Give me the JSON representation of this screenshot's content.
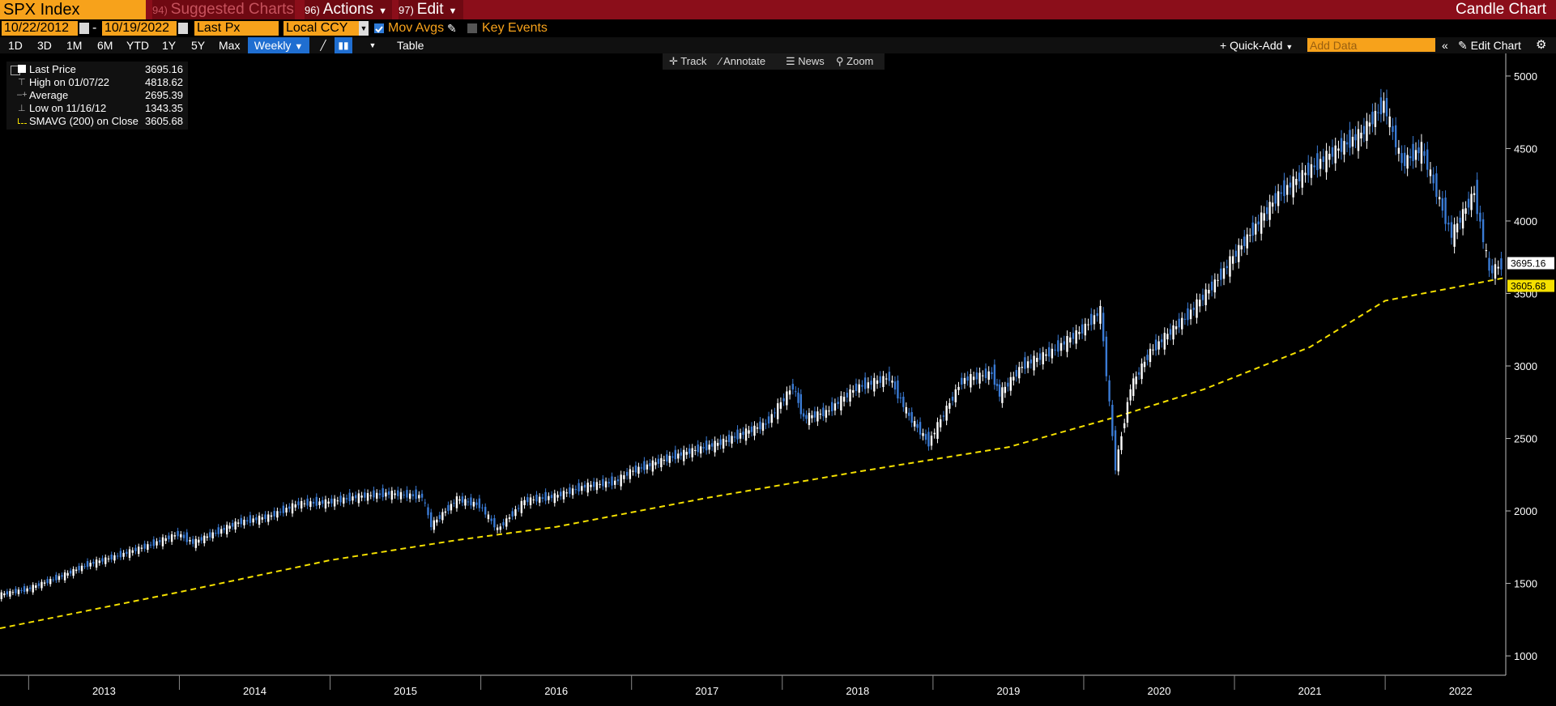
{
  "header": {
    "ticker": "SPX Index",
    "suggested_num": "94)",
    "suggested": "Suggested Charts",
    "actions_num": "96)",
    "actions": "Actions",
    "edit_num": "97)",
    "edit": "Edit",
    "chart_type": "Candle Chart"
  },
  "settings": {
    "start_date": "10/22/2012",
    "date_sep": "-",
    "end_date": "10/19/2022",
    "price_field": "Last Px",
    "currency": "Local CCY",
    "mov_avgs": "Mov Avgs",
    "key_events": "Key Events"
  },
  "periods": [
    "1D",
    "3D",
    "1M",
    "6M",
    "YTD",
    "1Y",
    "5Y",
    "Max"
  ],
  "toolbar": {
    "frequency": "Weekly",
    "table": "Table",
    "quick_add": "Quick-Add",
    "add_data_placeholder": "Add Data",
    "edit_chart": "Edit Chart"
  },
  "chart_tools": {
    "track": "Track",
    "annotate": "Annotate",
    "news": "News",
    "zoom": "Zoom"
  },
  "legend": [
    {
      "label": "Last Price",
      "value": "3695.16"
    },
    {
      "label": "High on 01/07/22",
      "value": "4818.62"
    },
    {
      "label": "Average",
      "value": "2695.39"
    },
    {
      "label": "Low on 11/16/12",
      "value": "1343.35"
    },
    {
      "label": "SMAVG (200)  on Close",
      "value": "3605.68"
    }
  ],
  "price_tags": {
    "last": "3695.16",
    "sma": "3605.68"
  },
  "colors": {
    "up": "#ffffff",
    "down": "#3a7bd5",
    "sma": "#f5e000",
    "accent": "#f7a21b",
    "bar": "#8b0e1a"
  },
  "chart_data": {
    "type": "candlestick",
    "x_label_years": [
      "2013",
      "2014",
      "2015",
      "2016",
      "2017",
      "2018",
      "2019",
      "2020",
      "2021",
      "2022"
    ],
    "y_ticks": [
      1000,
      1500,
      2000,
      2500,
      3000,
      3500,
      4000,
      4500,
      5000
    ],
    "ylim": [
      900,
      5100
    ],
    "xlim": [
      2012.81,
      2022.8
    ],
    "series": [
      {
        "name": "Last Price",
        "type": "candle",
        "x": [
          2012.81,
          2013.0,
          2013.25,
          2013.4,
          2013.6,
          2013.8,
          2014.0,
          2014.1,
          2014.4,
          2014.6,
          2014.8,
          2015.0,
          2015.2,
          2015.4,
          2015.62,
          2015.68,
          2015.85,
          2016.0,
          2016.12,
          2016.3,
          2016.5,
          2016.7,
          2016.9,
          2017.0,
          2017.3,
          2017.6,
          2017.9,
          2018.08,
          2018.15,
          2018.3,
          2018.5,
          2018.72,
          2018.85,
          2018.98,
          2019.2,
          2019.4,
          2019.45,
          2019.6,
          2019.8,
          2020.0,
          2020.12,
          2020.22,
          2020.32,
          2020.45,
          2020.7,
          2020.9,
          2021.0,
          2021.3,
          2021.5,
          2021.7,
          2021.85,
          2022.0,
          2022.12,
          2022.25,
          2022.45,
          2022.6,
          2022.7,
          2022.78
        ],
        "y": [
          1420,
          1460,
          1560,
          1630,
          1690,
          1760,
          1840,
          1780,
          1920,
          1960,
          2050,
          2060,
          2100,
          2120,
          2100,
          1900,
          2080,
          2040,
          1870,
          2070,
          2100,
          2170,
          2200,
          2270,
          2380,
          2470,
          2600,
          2860,
          2640,
          2680,
          2850,
          2920,
          2650,
          2470,
          2900,
          2950,
          2800,
          3000,
          3100,
          3250,
          3380,
          2300,
          2850,
          3100,
          3350,
          3600,
          3750,
          4180,
          4350,
          4500,
          4600,
          4810,
          4400,
          4500,
          3900,
          4200,
          3650,
          3695
        ]
      },
      {
        "name": "SMAVG (200)",
        "type": "line",
        "x": [
          2012.81,
          2014.0,
          2015.0,
          2015.85,
          2016.5,
          2017.5,
          2018.5,
          2019.5,
          2020.22,
          2020.8,
          2021.5,
          2022.0,
          2022.78
        ],
        "y": [
          1190,
          1440,
          1660,
          1800,
          1890,
          2090,
          2270,
          2440,
          2650,
          2840,
          3130,
          3450,
          3605.68
        ]
      }
    ]
  }
}
